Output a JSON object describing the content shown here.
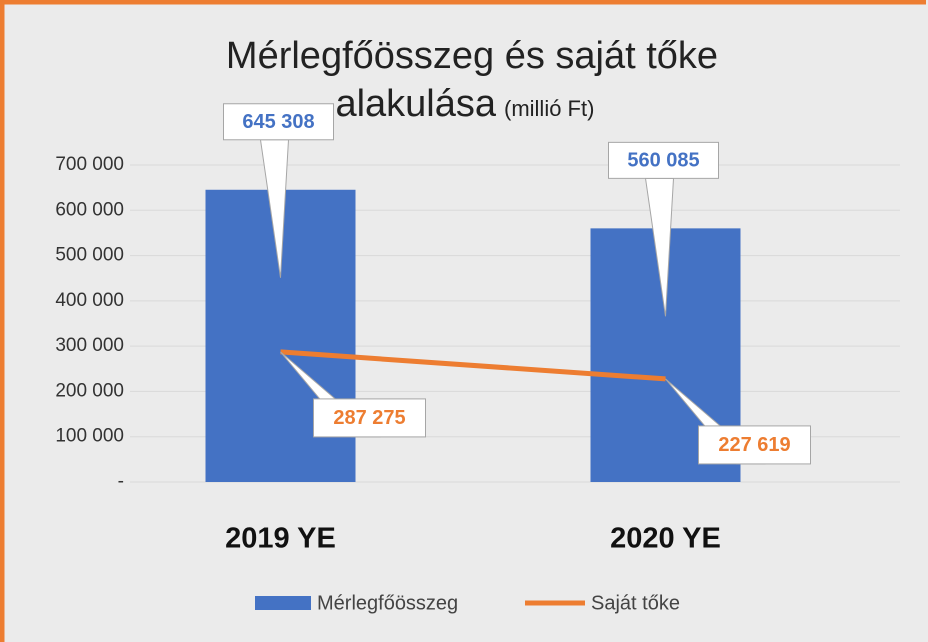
{
  "chart_data": {
    "type": "combo",
    "title": [
      "Mérlegfőösszeg és saját tőke",
      "alakulása"
    ],
    "title_unit": "(millió Ft)",
    "categories": [
      "2019 YE",
      "2020 YE"
    ],
    "series": [
      {
        "name": "Mérlegfőösszeg",
        "type": "bar",
        "color": "#4472c4",
        "values": [
          645308,
          560085
        ],
        "value_labels": [
          "645 308",
          "560 085"
        ]
      },
      {
        "name": "Saját tőke",
        "type": "line",
        "color": "#ed7d31",
        "values": [
          287275,
          227619
        ],
        "value_labels": [
          "287 275",
          "227 619"
        ]
      }
    ],
    "ylim": [
      0,
      700000
    ],
    "yticks": [
      {
        "value": 0,
        "label": "-"
      },
      {
        "value": 100000,
        "label": "100 000"
      },
      {
        "value": 200000,
        "label": "200 000"
      },
      {
        "value": 300000,
        "label": "300 000"
      },
      {
        "value": 400000,
        "label": "400 000"
      },
      {
        "value": 500000,
        "label": "500 000"
      },
      {
        "value": 600000,
        "label": "600 000"
      },
      {
        "value": 700000,
        "label": "700 000"
      }
    ],
    "grid": true,
    "legend": "bottom"
  }
}
